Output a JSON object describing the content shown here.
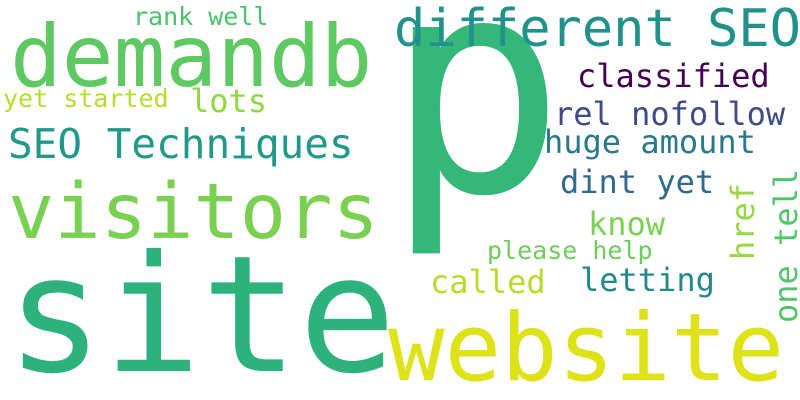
{
  "words": {
    "p": {
      "text": "p",
      "color": "#35b779"
    },
    "site": {
      "text": "site",
      "color": "#2db27d"
    },
    "website": {
      "text": "website",
      "color": "#dde318"
    },
    "visitors": {
      "text": "visitors",
      "color": "#7ad151"
    },
    "demandb": {
      "text": "demandb",
      "color": "#5ec962"
    },
    "different": {
      "text": "different SEO",
      "color": "#21918c"
    },
    "seo_tech": {
      "text": "SEO Techniques",
      "color": "#1f9a8a"
    },
    "classified": {
      "text": "classified",
      "color": "#440154"
    },
    "rel": {
      "text": "rel nofollow",
      "color": "#3e4a89"
    },
    "huge": {
      "text": "huge amount",
      "color": "#29798e"
    },
    "dint": {
      "text": "dint yet",
      "color": "#31688e"
    },
    "know": {
      "text": "know",
      "color": "#7ad151"
    },
    "letting": {
      "text": "letting",
      "color": "#23888e"
    },
    "called": {
      "text": "called",
      "color": "#b5de2b"
    },
    "please": {
      "text": "please help",
      "color": "#6ccd5a"
    },
    "rank": {
      "text": "rank well",
      "color": "#4ac16d"
    },
    "yet_started": {
      "text": "yet started",
      "color": "#b5de2b"
    },
    "lots": {
      "text": "lots",
      "color": "#8fd744"
    },
    "href": {
      "text": "href",
      "color": "#95d840"
    },
    "one_tell": {
      "text": "one tell",
      "color": "#52c569"
    }
  }
}
